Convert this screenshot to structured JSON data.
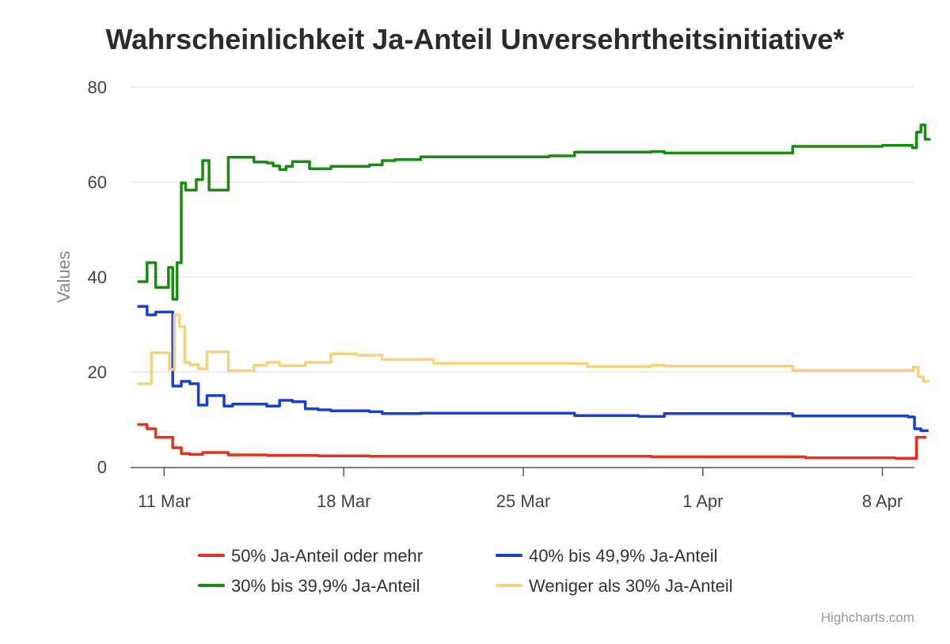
{
  "chart_data": {
    "type": "line",
    "title": "Wahrscheinlichkeit Ja-Anteil Unversehrtheitsinitiative*",
    "xlabel": "",
    "ylabel": "Values",
    "x_ticks": [
      "11 Mar",
      "18 Mar",
      "25 Mar",
      "1 Apr",
      "8 Apr"
    ],
    "y_ticks": [
      "0",
      "20",
      "40",
      "60",
      "80"
    ],
    "ylim": [
      0,
      80
    ],
    "xlim": [
      "2024-03-10",
      "2024-04-09"
    ],
    "grid": true,
    "legend_position": "bottom",
    "credit": "Highcharts.com",
    "series": [
      {
        "name": "50% Ja-Anteil oder mehr",
        "color": "#e8311a",
        "points": [
          [
            "2024-03-10",
            8.9
          ],
          [
            "2024-03-10",
            8.0
          ],
          [
            "2024-03-10",
            6.2
          ],
          [
            "2024-03-11",
            6.2
          ],
          [
            "2024-03-11",
            4.0
          ],
          [
            "2024-03-11",
            2.8
          ],
          [
            "2024-03-12",
            2.6
          ],
          [
            "2024-03-12",
            3.0
          ],
          [
            "2024-03-13",
            3.0
          ],
          [
            "2024-03-13",
            2.5
          ],
          [
            "2024-03-15",
            2.4
          ],
          [
            "2024-03-17",
            2.3
          ],
          [
            "2024-03-19",
            2.2
          ],
          [
            "2024-03-22",
            2.2
          ],
          [
            "2024-03-26",
            2.2
          ],
          [
            "2024-03-30",
            2.1
          ],
          [
            "2024-04-03",
            2.1
          ],
          [
            "2024-04-05",
            1.9
          ],
          [
            "2024-04-08",
            1.9
          ],
          [
            "2024-04-08",
            1.8
          ],
          [
            "2024-04-09",
            1.8
          ],
          [
            "2024-04-09",
            6.2
          ],
          [
            "2024-04-09",
            6.2
          ]
        ]
      },
      {
        "name": "40% bis 49,9% Ja-Anteil",
        "color": "#1a3fd4",
        "points": [
          [
            "2024-03-10",
            33.8
          ],
          [
            "2024-03-10",
            32.0
          ],
          [
            "2024-03-10",
            32.6
          ],
          [
            "2024-03-11",
            32.6
          ],
          [
            "2024-03-11",
            17.0
          ],
          [
            "2024-03-11",
            18.0
          ],
          [
            "2024-03-12",
            17.5
          ],
          [
            "2024-03-12",
            13.0
          ],
          [
            "2024-03-12",
            15.0
          ],
          [
            "2024-03-13",
            15.0
          ],
          [
            "2024-03-13",
            12.8
          ],
          [
            "2024-03-13",
            13.2
          ],
          [
            "2024-03-15",
            12.8
          ],
          [
            "2024-03-15",
            14.0
          ],
          [
            "2024-03-16",
            13.7
          ],
          [
            "2024-03-16",
            12.2
          ],
          [
            "2024-03-17",
            12.0
          ],
          [
            "2024-03-17",
            11.8
          ],
          [
            "2024-03-19",
            11.6
          ],
          [
            "2024-03-19",
            11.2
          ],
          [
            "2024-03-21",
            11.3
          ],
          [
            "2024-03-26",
            11.3
          ],
          [
            "2024-03-27",
            10.8
          ],
          [
            "2024-03-29",
            10.8
          ],
          [
            "2024-03-29",
            10.6
          ],
          [
            "2024-03-30",
            10.6
          ],
          [
            "2024-03-30",
            11.2
          ],
          [
            "2024-04-04",
            11.2
          ],
          [
            "2024-04-04",
            10.7
          ],
          [
            "2024-04-08",
            10.7
          ],
          [
            "2024-04-09",
            10.5
          ],
          [
            "2024-04-09",
            8.0
          ],
          [
            "2024-04-09",
            7.6
          ],
          [
            "2024-04-09",
            7.6
          ]
        ]
      },
      {
        "name": "30% bis 39,9% Ja-Anteil",
        "color": "#188c0f",
        "points": [
          [
            "2024-03-10",
            39.0
          ],
          [
            "2024-03-10",
            43.0
          ],
          [
            "2024-03-10",
            37.8
          ],
          [
            "2024-03-11",
            37.8
          ],
          [
            "2024-03-11",
            42.0
          ],
          [
            "2024-03-11",
            35.3
          ],
          [
            "2024-03-11",
            43.0
          ],
          [
            "2024-03-11",
            59.8
          ],
          [
            "2024-03-11",
            58.3
          ],
          [
            "2024-03-12",
            58.3
          ],
          [
            "2024-03-12",
            60.5
          ],
          [
            "2024-03-12",
            64.5
          ],
          [
            "2024-03-12",
            58.3
          ],
          [
            "2024-03-13",
            58.3
          ],
          [
            "2024-03-13",
            65.2
          ],
          [
            "2024-03-14",
            65.2
          ],
          [
            "2024-03-14",
            64.2
          ],
          [
            "2024-03-15",
            64.0
          ],
          [
            "2024-03-15",
            63.4
          ],
          [
            "2024-03-15",
            62.6
          ],
          [
            "2024-03-15",
            63.3
          ],
          [
            "2024-03-16",
            64.3
          ],
          [
            "2024-03-16",
            64.3
          ],
          [
            "2024-03-16",
            62.8
          ],
          [
            "2024-03-17",
            62.8
          ],
          [
            "2024-03-17",
            63.3
          ],
          [
            "2024-03-19",
            63.6
          ],
          [
            "2024-03-19",
            64.5
          ],
          [
            "2024-03-20",
            64.7
          ],
          [
            "2024-03-21",
            65.3
          ],
          [
            "2024-03-26",
            65.5
          ],
          [
            "2024-03-27",
            66.3
          ],
          [
            "2024-03-30",
            66.4
          ],
          [
            "2024-03-30",
            66.1
          ],
          [
            "2024-04-04",
            66.1
          ],
          [
            "2024-04-04",
            67.5
          ],
          [
            "2024-04-08",
            67.7
          ],
          [
            "2024-04-09",
            67.7
          ],
          [
            "2024-04-09",
            67.2
          ],
          [
            "2024-04-09",
            70.5
          ],
          [
            "2024-04-09",
            72.0
          ],
          [
            "2024-04-09",
            69.0
          ],
          [
            "2024-04-09",
            69.0
          ]
        ]
      },
      {
        "name": "Weniger als 30% Ja-Anteil",
        "color": "#f5d37e",
        "points": [
          [
            "2024-03-10",
            17.5
          ],
          [
            "2024-03-10",
            24.0
          ],
          [
            "2024-03-11",
            24.0
          ],
          [
            "2024-03-11",
            20.5
          ],
          [
            "2024-03-11",
            32.0
          ],
          [
            "2024-03-11",
            29.5
          ],
          [
            "2024-03-11",
            22.0
          ],
          [
            "2024-03-12",
            21.5
          ],
          [
            "2024-03-12",
            20.6
          ],
          [
            "2024-03-12",
            24.2
          ],
          [
            "2024-03-13",
            24.2
          ],
          [
            "2024-03-13",
            20.2
          ],
          [
            "2024-03-14",
            20.2
          ],
          [
            "2024-03-14",
            21.4
          ],
          [
            "2024-03-15",
            22.0
          ],
          [
            "2024-03-15",
            21.3
          ],
          [
            "2024-03-16",
            21.3
          ],
          [
            "2024-03-16",
            22.0
          ],
          [
            "2024-03-17",
            22.0
          ],
          [
            "2024-03-17",
            23.8
          ],
          [
            "2024-03-18",
            23.8
          ],
          [
            "2024-03-18",
            23.5
          ],
          [
            "2024-03-19",
            23.5
          ],
          [
            "2024-03-19",
            22.6
          ],
          [
            "2024-03-21",
            22.6
          ],
          [
            "2024-03-21",
            21.8
          ],
          [
            "2024-03-27",
            21.7
          ],
          [
            "2024-03-27",
            21.1
          ],
          [
            "2024-03-29",
            21.1
          ],
          [
            "2024-03-30",
            21.4
          ],
          [
            "2024-03-30",
            21.2
          ],
          [
            "2024-04-04",
            21.2
          ],
          [
            "2024-04-04",
            20.3
          ],
          [
            "2024-04-08",
            20.3
          ],
          [
            "2024-04-09",
            20.3
          ],
          [
            "2024-04-09",
            21.0
          ],
          [
            "2024-04-09",
            19.0
          ],
          [
            "2024-04-09",
            18.0
          ],
          [
            "2024-04-09",
            18.0
          ]
        ]
      }
    ]
  }
}
